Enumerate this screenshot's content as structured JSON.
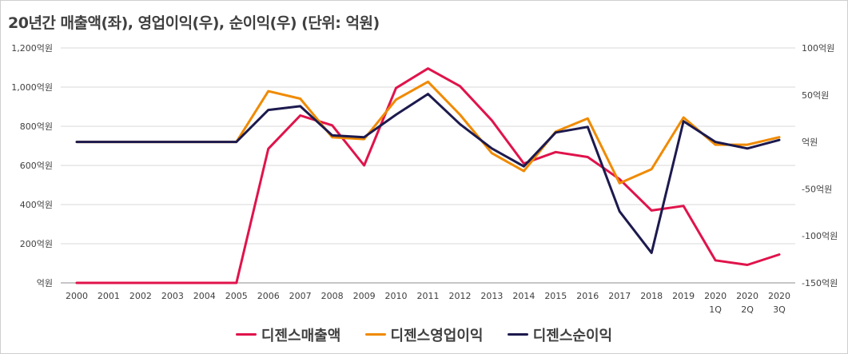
{
  "chart_data": {
    "type": "line",
    "title": "20년간 매출액(좌), 영업이익(우), 순이익(우) (단위: 억원)",
    "categories": [
      {
        "label": "2000",
        "sub": ""
      },
      {
        "label": "2001",
        "sub": ""
      },
      {
        "label": "2002",
        "sub": ""
      },
      {
        "label": "2003",
        "sub": ""
      },
      {
        "label": "2004",
        "sub": ""
      },
      {
        "label": "2005",
        "sub": ""
      },
      {
        "label": "2006",
        "sub": ""
      },
      {
        "label": "2007",
        "sub": ""
      },
      {
        "label": "2008",
        "sub": ""
      },
      {
        "label": "2009",
        "sub": ""
      },
      {
        "label": "2010",
        "sub": ""
      },
      {
        "label": "2011",
        "sub": ""
      },
      {
        "label": "2012",
        "sub": ""
      },
      {
        "label": "2013",
        "sub": ""
      },
      {
        "label": "2014",
        "sub": ""
      },
      {
        "label": "2015",
        "sub": ""
      },
      {
        "label": "2016",
        "sub": ""
      },
      {
        "label": "2017",
        "sub": ""
      },
      {
        "label": "2018",
        "sub": ""
      },
      {
        "label": "2019",
        "sub": ""
      },
      {
        "label": "2020",
        "sub": "1Q"
      },
      {
        "label": "2020",
        "sub": "2Q"
      },
      {
        "label": "2020",
        "sub": "3Q"
      }
    ],
    "left_axis": {
      "ylim": [
        0,
        1200
      ],
      "ticks": [
        {
          "value": 0,
          "label": "억원"
        },
        {
          "value": 200,
          "label": "200억원"
        },
        {
          "value": 400,
          "label": "400억원"
        },
        {
          "value": 600,
          "label": "600억원"
        },
        {
          "value": 800,
          "label": "800억원"
        },
        {
          "value": 1000,
          "label": "1,000억원"
        },
        {
          "value": 1200,
          "label": "1,200억원"
        }
      ]
    },
    "right_axis": {
      "ylim": [
        -150,
        100
      ],
      "ticks": [
        {
          "value": -150,
          "label": "-150억원"
        },
        {
          "value": -100,
          "label": "-100억원"
        },
        {
          "value": -50,
          "label": "-50억원"
        },
        {
          "value": 0,
          "label": "억원"
        },
        {
          "value": 50,
          "label": "50억원"
        },
        {
          "value": 100,
          "label": "100억원"
        }
      ]
    },
    "grid": "horizontal",
    "legend_position": "bottom",
    "series": [
      {
        "name": "디젠스매출액",
        "axis": "left",
        "color": "#e0134b",
        "values": [
          0,
          0,
          0,
          0,
          0,
          0,
          685,
          855,
          805,
          600,
          995,
          1095,
          1005,
          830,
          610,
          668,
          643,
          530,
          370,
          393,
          115,
          92,
          145
        ]
      },
      {
        "name": "디젠스영업이익",
        "axis": "right",
        "color": "#f08a00",
        "values": [
          0,
          0,
          0,
          0,
          0,
          0,
          54,
          46,
          5,
          3,
          45,
          64,
          29,
          -12,
          -31,
          11,
          25,
          -44,
          -29,
          26,
          -3,
          -3,
          5
        ]
      },
      {
        "name": "디젠스순이익",
        "axis": "right",
        "color": "#1c1a4e",
        "values": [
          0,
          0,
          0,
          0,
          0,
          0,
          34,
          38,
          7,
          5,
          29,
          51,
          19,
          -7,
          -26,
          10,
          16,
          -74,
          -118,
          22,
          0,
          -7,
          2
        ]
      }
    ]
  }
}
